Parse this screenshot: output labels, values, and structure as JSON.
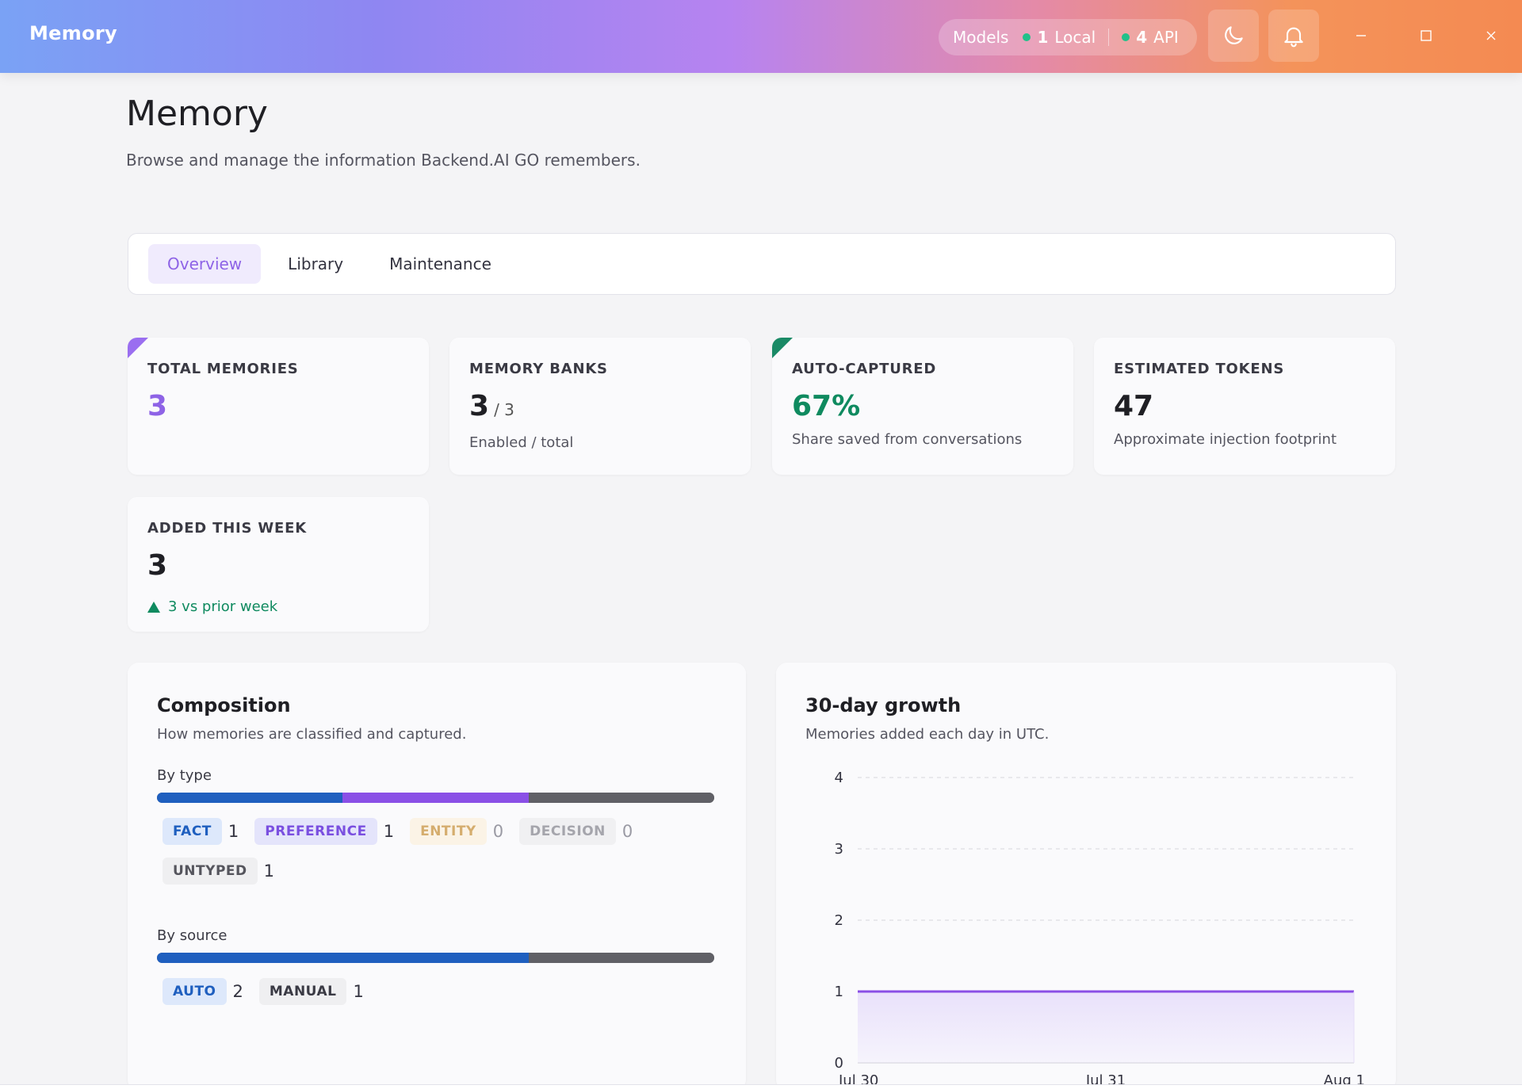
{
  "window": {
    "title": "Memory",
    "models_label": "Models",
    "local_count": "1",
    "local_label": "Local",
    "api_count": "4",
    "api_label": "API"
  },
  "header": {
    "title": "Memory",
    "subtitle": "Browse and manage the information Backend.AI GO remembers."
  },
  "tabs": [
    {
      "label": "Overview",
      "active": true
    },
    {
      "label": "Library",
      "active": false
    },
    {
      "label": "Maintenance",
      "active": false
    }
  ],
  "stats": {
    "total": {
      "label": "TOTAL MEMORIES",
      "value": "3"
    },
    "banks": {
      "label": "MEMORY BANKS",
      "value": "3",
      "total": "/ 3",
      "sub": "Enabled / total"
    },
    "auto": {
      "label": "AUTO-CAPTURED",
      "value": "67%",
      "sub": "Share saved from conversations"
    },
    "tokens": {
      "label": "ESTIMATED TOKENS",
      "value": "47",
      "sub": "Approximate injection footprint"
    },
    "week": {
      "label": "ADDED THIS WEEK",
      "value": "3",
      "trend": "3 vs prior week"
    }
  },
  "composition": {
    "title": "Composition",
    "subtitle": "How memories are classified and captured.",
    "by_type_label": "By type",
    "types": [
      {
        "label": "FACT",
        "count": "1",
        "value": 1,
        "color": "#1f5fbf",
        "chip_bg": "#dde8fb",
        "chip_fg": "#1f5fbf",
        "muted": false
      },
      {
        "label": "PREFERENCE",
        "count": "1",
        "value": 1,
        "color": "#8a4fe6",
        "chip_bg": "#e4e4fb",
        "chip_fg": "#7a4fe0",
        "muted": false
      },
      {
        "label": "ENTITY",
        "count": "0",
        "value": 0,
        "color": "#d0a050",
        "chip_bg": "#fbf3e6",
        "chip_fg": "#d5ad6e",
        "muted": true
      },
      {
        "label": "DECISION",
        "count": "0",
        "value": 0,
        "color": "#999999",
        "chip_bg": "#f0f0f2",
        "chip_fg": "#a5a5ac",
        "muted": true
      },
      {
        "label": "UNTYPED",
        "count": "1",
        "value": 1,
        "color": "#606066",
        "chip_bg": "#efeff1",
        "chip_fg": "#55555d",
        "muted": false
      }
    ],
    "by_source_label": "By source",
    "sources": [
      {
        "label": "AUTO",
        "count": "2",
        "value": 2,
        "color": "#1f5fbf",
        "chip_bg": "#dde8fb",
        "chip_fg": "#1f5fbf"
      },
      {
        "label": "MANUAL",
        "count": "1",
        "value": 1,
        "color": "#606066",
        "chip_bg": "#efeff1",
        "chip_fg": "#3a3a44"
      }
    ]
  },
  "growth": {
    "title": "30-day growth",
    "subtitle": "Memories added each day in UTC."
  },
  "chart_data": {
    "type": "area",
    "x": [
      "Jul 30",
      "Jul 31",
      "Aug 1"
    ],
    "values": [
      1,
      1,
      1
    ],
    "y_ticks": [
      "0",
      "1",
      "2",
      "3",
      "4"
    ],
    "ylim": [
      0,
      4
    ],
    "grid": true,
    "line_color": "#8a4fe6",
    "fill_color": "#e9e1fb"
  },
  "colors": {
    "accent": "#8e63e6",
    "success": "#0f8a5f"
  }
}
